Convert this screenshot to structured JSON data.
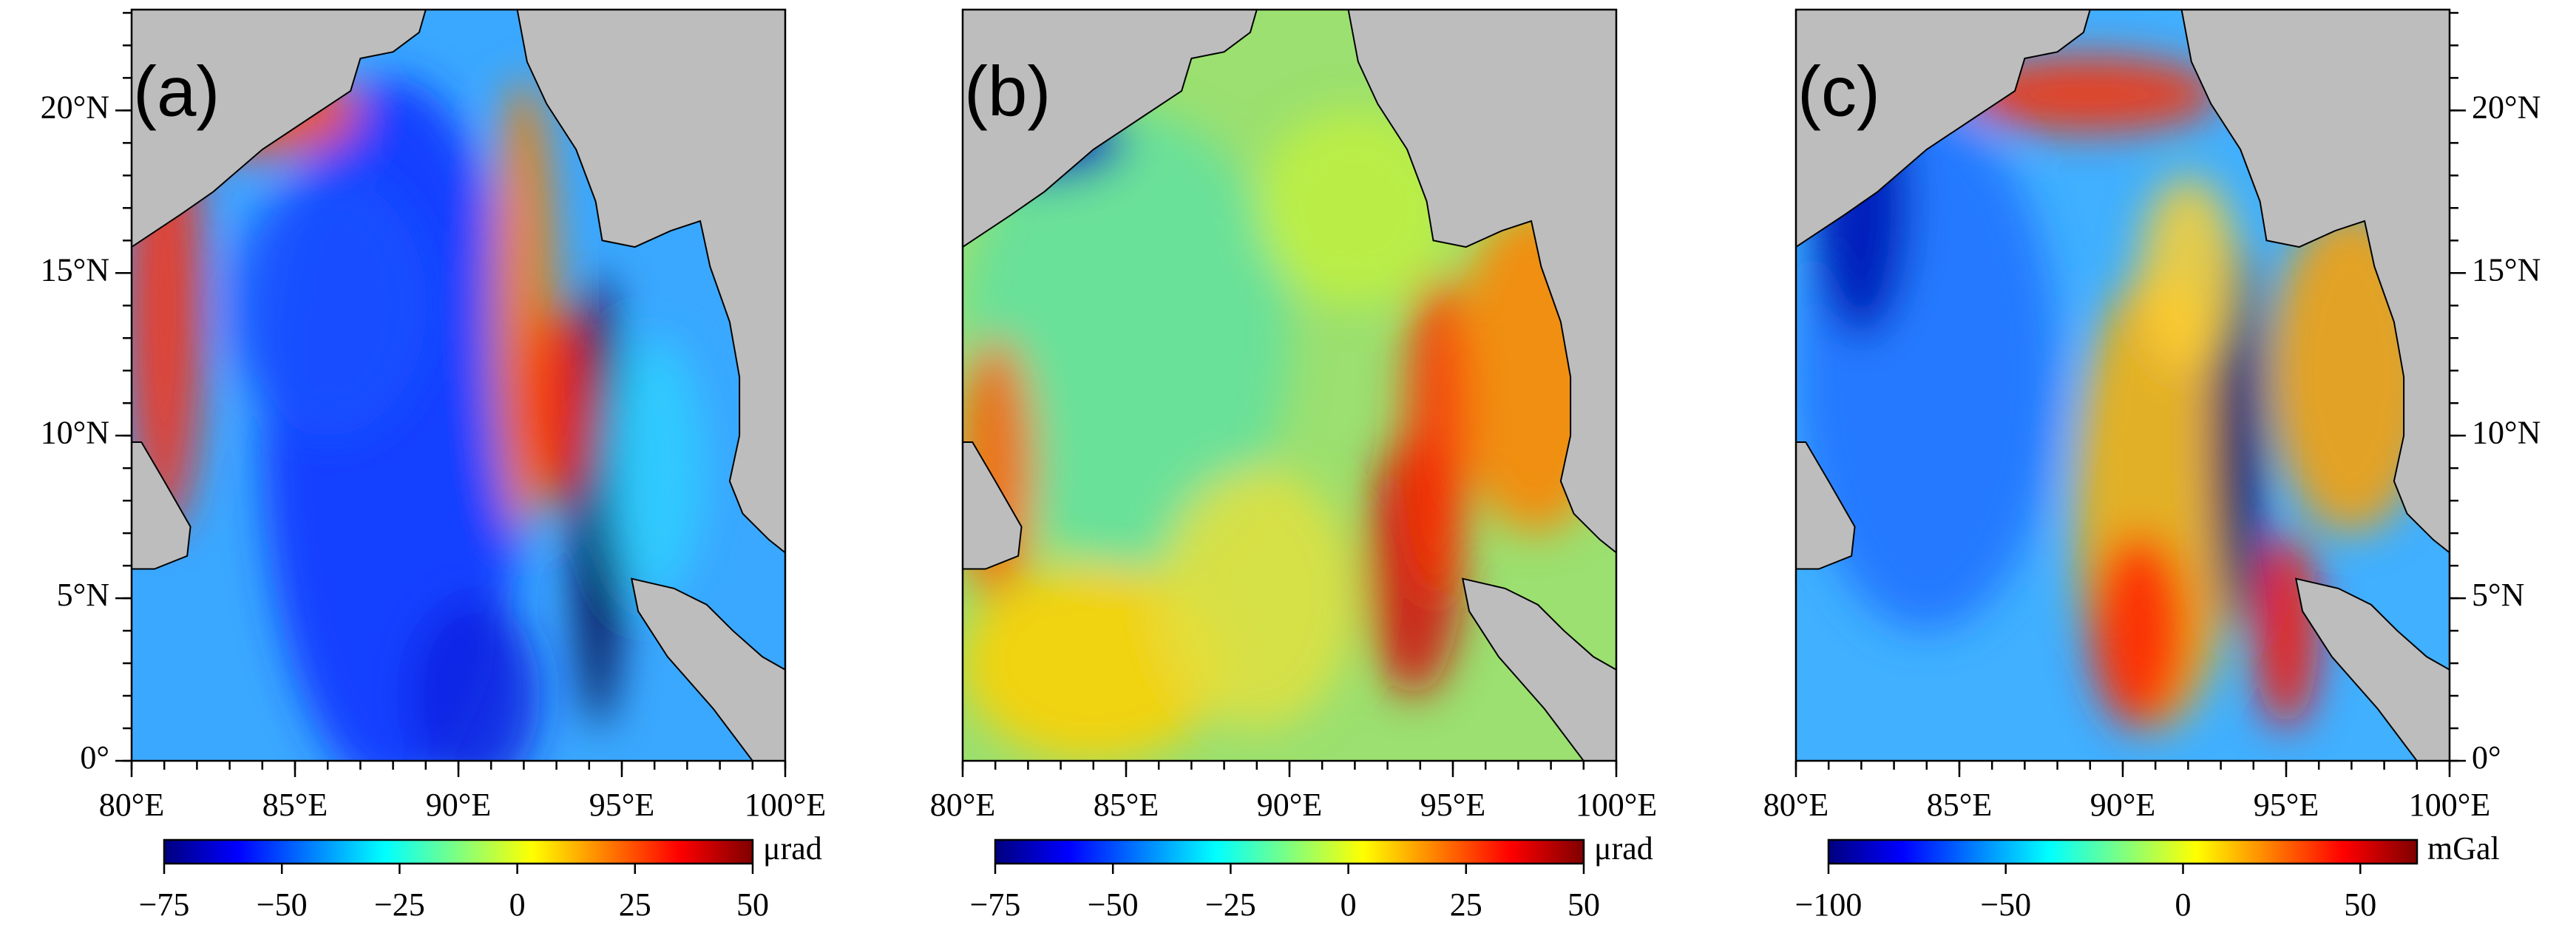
{
  "panels": [
    {
      "label": "(a)",
      "colorbar": {
        "unit": "μrad",
        "clim": [
          -75,
          50
        ],
        "ticks": [
          {
            "value": -75,
            "label": "−75"
          },
          {
            "value": -50,
            "label": "−50"
          },
          {
            "value": -25,
            "label": "−25"
          },
          0,
          25,
          50
        ]
      }
    },
    {
      "label": "(b)",
      "colorbar": {
        "unit": "μrad",
        "clim": [
          -75,
          50
        ],
        "ticks": [
          {
            "value": -75,
            "label": "−75"
          },
          {
            "value": -50,
            "label": "−50"
          },
          {
            "value": -25,
            "label": "−25"
          },
          0,
          25,
          50
        ]
      }
    },
    {
      "label": "(c)",
      "colorbar": {
        "unit": "mGal",
        "clim": [
          -100,
          66
        ],
        "ticks": [
          {
            "value": -100,
            "label": "−100"
          },
          {
            "value": -50,
            "label": "−50"
          },
          0,
          50
        ]
      }
    }
  ],
  "lonlim": [
    80,
    100
  ],
  "latlim": [
    0,
    23.1
  ],
  "lon_ticks": [
    {
      "value": 80,
      "label": "80°E"
    },
    {
      "value": 85,
      "label": "85°E"
    },
    {
      "value": 90,
      "label": "90°E"
    },
    {
      "value": 95,
      "label": "95°E"
    },
    {
      "value": 100,
      "label": "100°E"
    }
  ],
  "lat_ticks": [
    {
      "value": 0,
      "label": "0°"
    },
    {
      "value": 5,
      "label": "5°N"
    },
    {
      "value": 10,
      "label": "10°N"
    },
    {
      "value": 15,
      "label": "15°N"
    },
    {
      "value": 20,
      "label": "20°N"
    }
  ]
}
